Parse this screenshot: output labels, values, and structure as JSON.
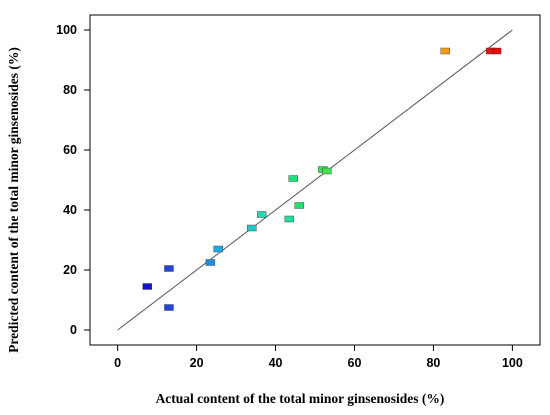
{
  "chart_data": {
    "type": "scatter",
    "title": "",
    "xlabel": "Actual content of the total minor ginsenosides (%)",
    "ylabel": "Predicted content of the total minor ginsenosides (%)",
    "xlim": [
      -7,
      107
    ],
    "ylim": [
      -5,
      105
    ],
    "xticks": [
      "0",
      "20",
      "40",
      "60",
      "80",
      "100"
    ],
    "yticks": [
      "0",
      "20",
      "40",
      "60",
      "80",
      "100"
    ],
    "grid": false,
    "legend": "none",
    "fit_line": {
      "x": [
        0,
        100
      ],
      "y": [
        0,
        100
      ],
      "color": "#555555"
    },
    "points": [
      {
        "x": 7.5,
        "y": 14.5,
        "color": "#1414cc"
      },
      {
        "x": 13.0,
        "y": 20.5,
        "color": "#2244dd"
      },
      {
        "x": 13.0,
        "y": 7.5,
        "color": "#2244dd"
      },
      {
        "x": 23.5,
        "y": 22.5,
        "color": "#1e90e0"
      },
      {
        "x": 25.5,
        "y": 27.0,
        "color": "#1ea8e8"
      },
      {
        "x": 34.0,
        "y": 34.0,
        "color": "#20c8c8"
      },
      {
        "x": 36.5,
        "y": 38.5,
        "color": "#22d8b0"
      },
      {
        "x": 43.5,
        "y": 37.0,
        "color": "#22e09a"
      },
      {
        "x": 44.5,
        "y": 50.5,
        "color": "#22e080"
      },
      {
        "x": 46.0,
        "y": 41.5,
        "color": "#22e070"
      },
      {
        "x": 52.0,
        "y": 53.5,
        "color": "#33e060"
      },
      {
        "x": 53.0,
        "y": 53.0,
        "color": "#44e050"
      },
      {
        "x": 83.0,
        "y": 93.0,
        "color": "#f59a1a"
      },
      {
        "x": 94.5,
        "y": 93.0,
        "color": "#e81010"
      },
      {
        "x": 96.0,
        "y": 93.0,
        "color": "#dd0f0f"
      }
    ]
  }
}
